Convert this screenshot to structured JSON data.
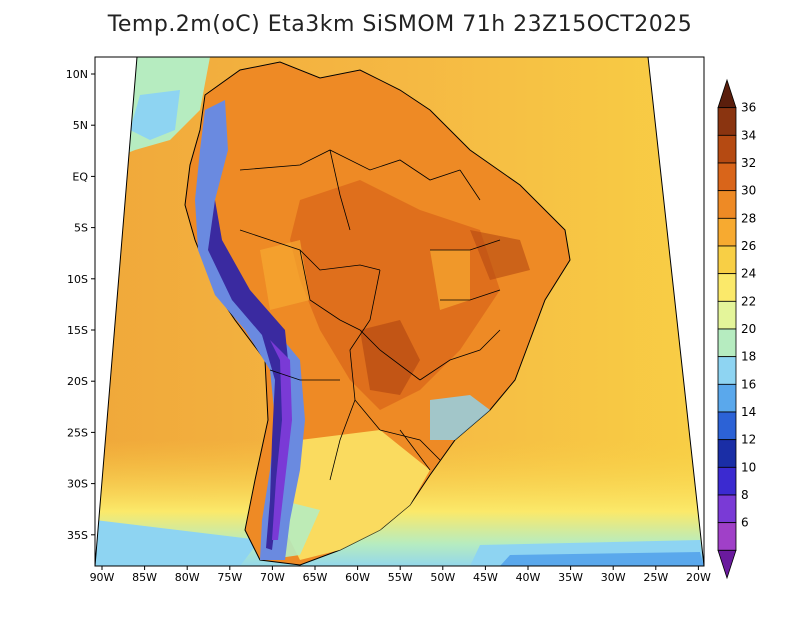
{
  "title": "Temp.2m(oC) Eta3km SiSMOM 71h 23Z15OCT2025",
  "lat_labels": [
    "10N",
    "5N",
    "EQ",
    "5S",
    "10S",
    "15S",
    "20S",
    "25S",
    "30S",
    "35S"
  ],
  "lon_labels": [
    "90W",
    "85W",
    "80W",
    "75W",
    "70W",
    "65W",
    "60W",
    "55W",
    "50W",
    "45W",
    "40W",
    "35W",
    "30W",
    "25W",
    "20W"
  ],
  "colorbar": {
    "labels": [
      "36",
      "34",
      "32",
      "30",
      "28",
      "26",
      "24",
      "22",
      "20",
      "18",
      "16",
      "14",
      "12",
      "10",
      "8",
      "6"
    ],
    "colors": [
      "#5a1e0c",
      "#8a3410",
      "#b54a12",
      "#d9651a",
      "#ee8a25",
      "#f7aa30",
      "#f8cf45",
      "#fbe96a",
      "#e4f59a",
      "#b6ecc0",
      "#8ed4f2",
      "#5aa8ec",
      "#2c62d6",
      "#1a2ea6",
      "#3b2ad0",
      "#7a3ad6",
      "#a040c8",
      "#6a1a9e"
    ]
  },
  "legend_colors": {
    "ocean_warm": "#f6c24a",
    "ocean_mid": "#f0a83a",
    "land_hot": "#ee8a25",
    "land_very_hot": "#d9651a",
    "andes_cold": "#3a2aa0",
    "andes_cool": "#6a8ae0",
    "south_cool": "#9fe0f0"
  }
}
